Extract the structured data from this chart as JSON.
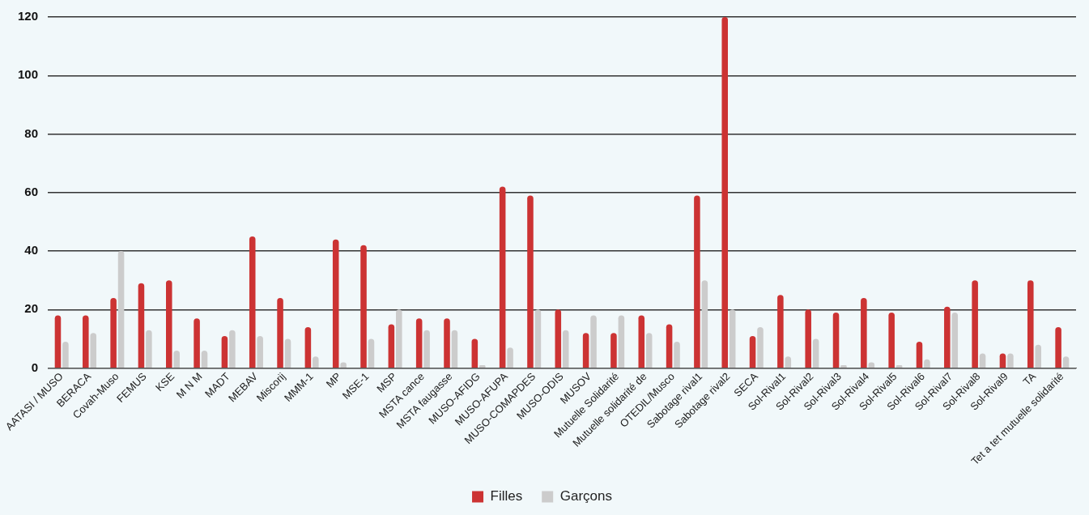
{
  "chart_data": {
    "type": "bar",
    "categories": [
      "AATASI / MUSO",
      "BERACA",
      "Covah-Muso",
      "FEMUS",
      "KSE",
      "M N M",
      "MADT",
      "MEBAV",
      "Miscorij",
      "MMM-1",
      "MP",
      "MSE-1",
      "MSP",
      "MSTA cance",
      "MSTA faugasse",
      "MUSO-AFIDG",
      "MUSO-AFUPA",
      "MUSO-COMAPDES",
      "MUSO-ODIS",
      "MUSOV",
      "Mutuelle Solidarité",
      "Mutuelle solidarité de",
      "OTEDIL/Musco",
      "Sabotage rival1",
      "Sabotage rival2",
      "SECA",
      "Sol-Rival1",
      "Sol-Rival2",
      "Sol-Rival3",
      "Sol-Rival4",
      "Sol-Rival5",
      "Sol-Rival6",
      "Sol-Rival7",
      "Sol-Rival8",
      "Sol-Rival9",
      "TA",
      "Tet a tet mutuelle solidarité"
    ],
    "series": [
      {
        "name": "Filles",
        "color": "#cc3333",
        "values": [
          18,
          18,
          24,
          29,
          30,
          17,
          11,
          45,
          24,
          14,
          44,
          42,
          15,
          17,
          17,
          10,
          62,
          59,
          20,
          12,
          12,
          18,
          15,
          59,
          120,
          11,
          25,
          20,
          19,
          24,
          19,
          9,
          21,
          30,
          5,
          30,
          14
        ]
      },
      {
        "name": "Garçons",
        "color": "#cccccc",
        "values": [
          9,
          12,
          40,
          13,
          6,
          6,
          13,
          11,
          10,
          4,
          2,
          10,
          20,
          13,
          13,
          1,
          7,
          20,
          13,
          18,
          18,
          12,
          9,
          30,
          20,
          14,
          4,
          10,
          1,
          2,
          1,
          3,
          19,
          5,
          5,
          8,
          4
        ]
      }
    ],
    "ylim": [
      0,
      120
    ],
    "yticks": [
      0,
      20,
      40,
      60,
      80,
      100,
      120
    ],
    "grid": "y",
    "legend": "bottom"
  }
}
